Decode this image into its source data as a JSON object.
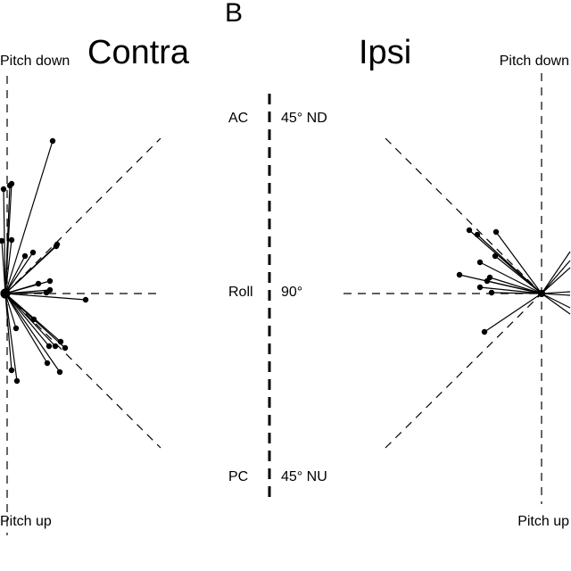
{
  "panel_label": "B",
  "left": {
    "title": "Contra",
    "top_label": "Pitch down",
    "bottom_label": "Pitch up"
  },
  "right": {
    "title": "Ipsi",
    "top_label": "Pitch down",
    "bottom_label": "Pitch up"
  },
  "axis": {
    "rows": [
      {
        "left": "AC",
        "right": "45° ND"
      },
      {
        "left": "Roll",
        "right": "90°"
      },
      {
        "left": "PC",
        "right": "45° NU"
      }
    ]
  },
  "colors": {
    "ink": "#000000",
    "background": "#ffffff"
  }
}
